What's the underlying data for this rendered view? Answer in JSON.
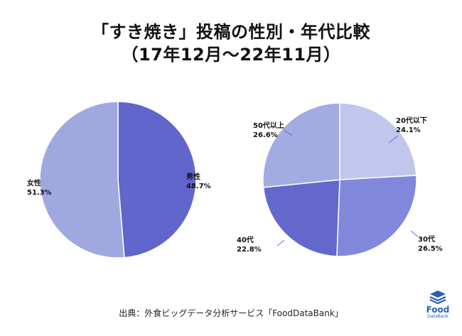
{
  "title": {
    "line1": "「すき焼き」投稿の性別・年代比較",
    "line2": "（17年12月〜22年11月）"
  },
  "chart_data": [
    {
      "type": "pie",
      "categories": [
        "男性",
        "女性"
      ],
      "values": [
        48.7,
        51.3
      ],
      "value_labels": [
        "48.7%",
        "51.3%"
      ],
      "colors": [
        "#6166cc",
        "#a0a8e0"
      ]
    },
    {
      "type": "pie",
      "categories": [
        "20代以下",
        "30代",
        "40代",
        "50代以上"
      ],
      "values": [
        24.1,
        26.5,
        22.8,
        26.6
      ],
      "value_labels": [
        "24.1%",
        "26.5%",
        "22.8%",
        "26.6%"
      ],
      "colors": [
        "#c0c6ec",
        "#8188dc",
        "#6468cc",
        "#a2abe2"
      ]
    }
  ],
  "footer": {
    "source": "出典：外食ビッグデータ分析サービス「FoodDataBank」"
  },
  "logo": {
    "word": "Food",
    "sub": "DataBank",
    "color": "#2b5fb3"
  }
}
